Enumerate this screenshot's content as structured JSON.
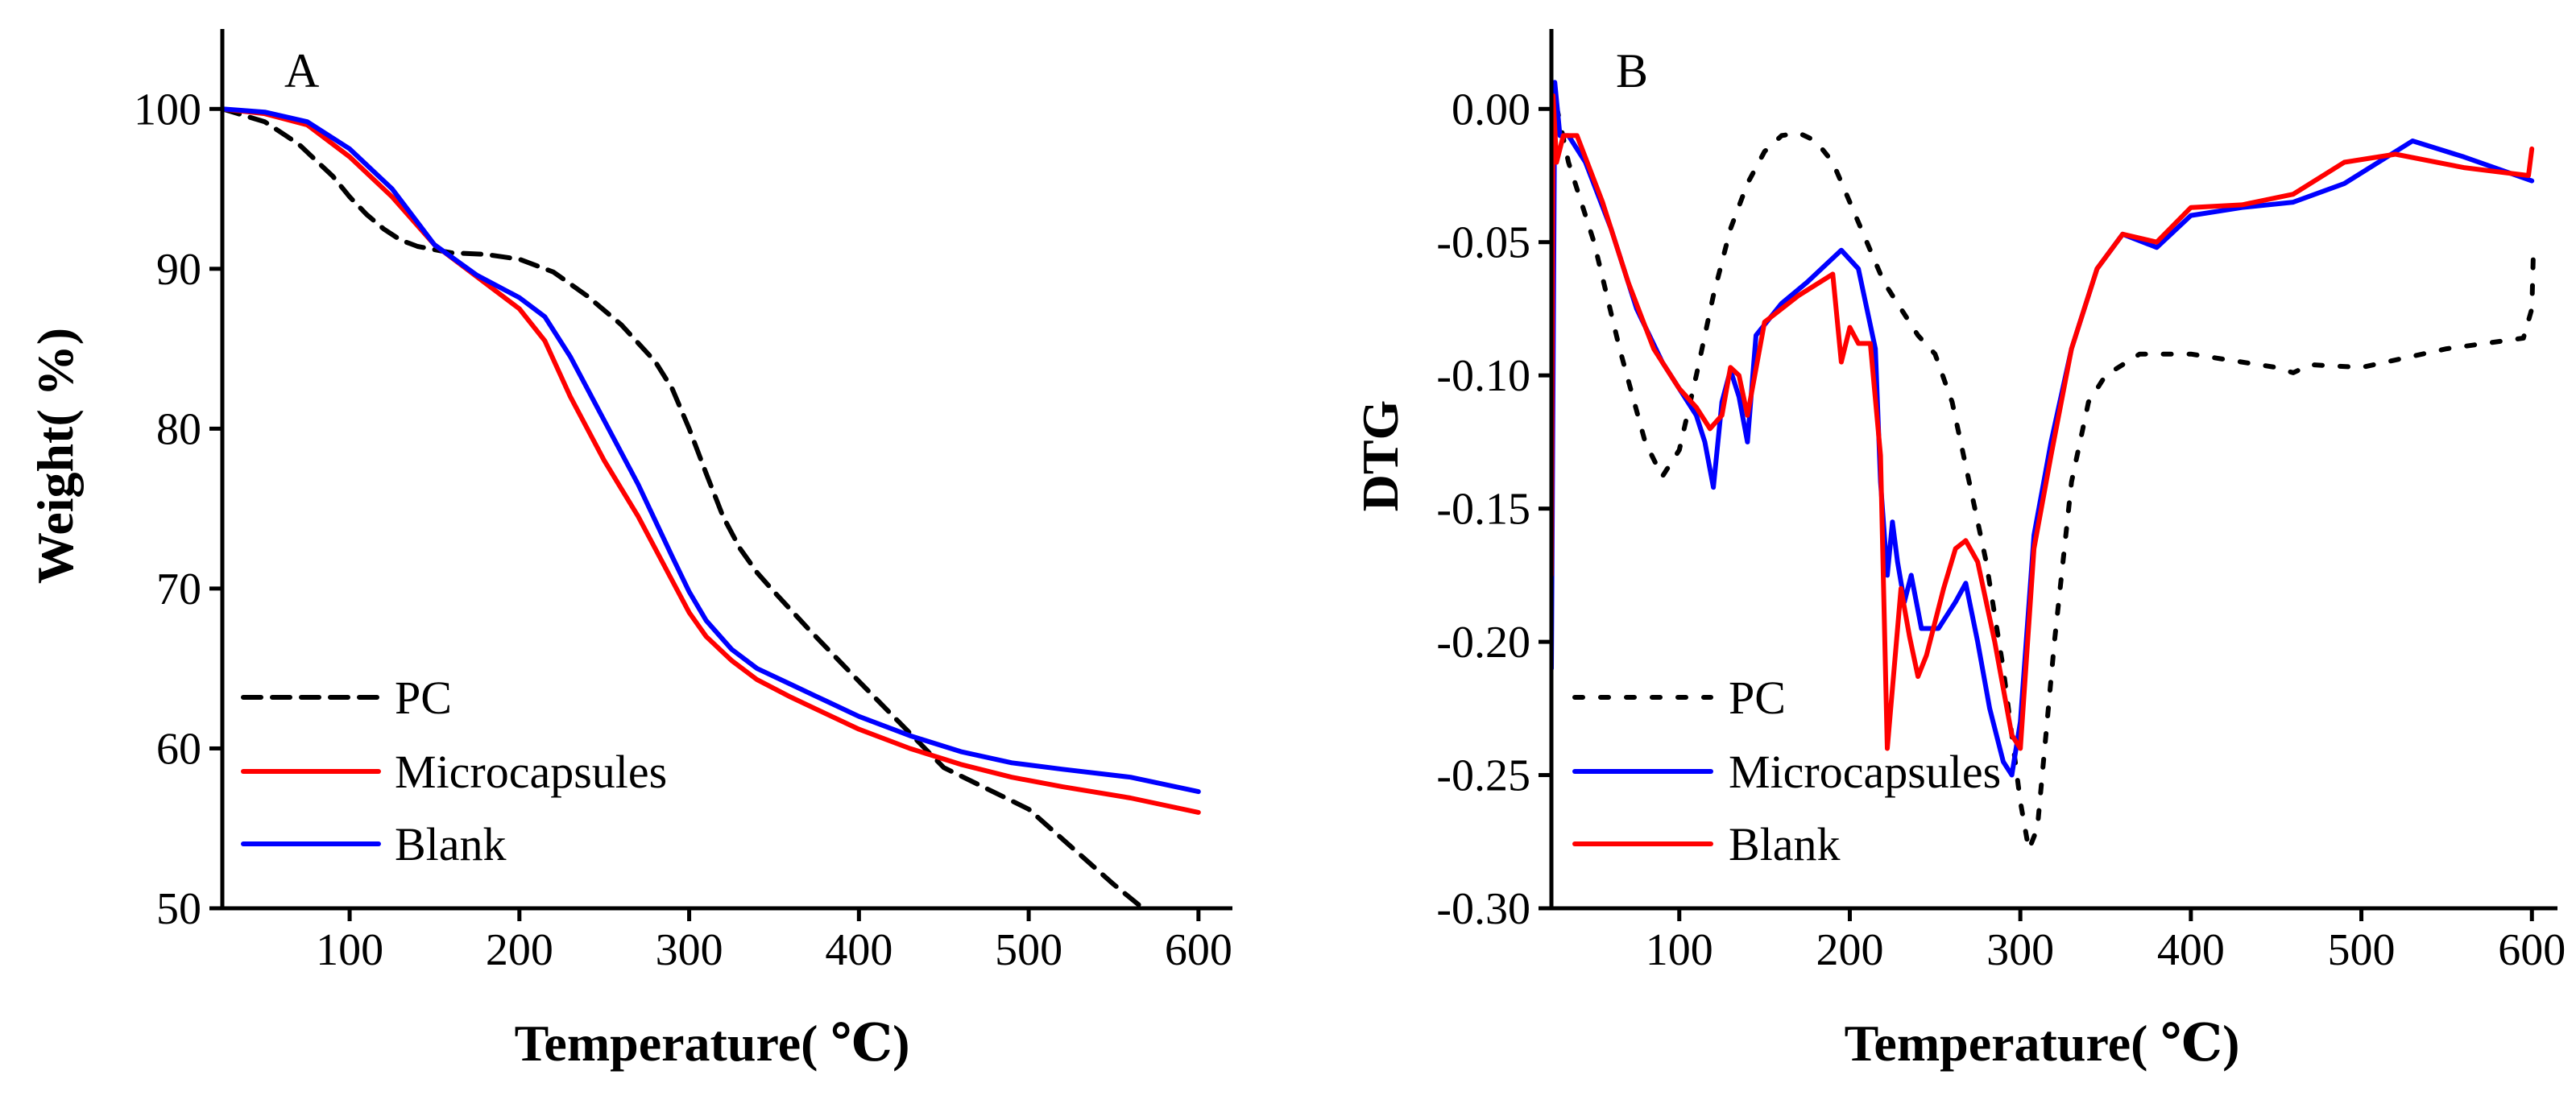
{
  "chart_data": [
    {
      "type": "line",
      "panel_label": "A",
      "xlabel": "Temperature( ℃)",
      "ylabel": "Weight( %)",
      "xlim": [
        25,
        620
      ],
      "ylim": [
        50,
        105
      ],
      "xticks": [
        100,
        200,
        300,
        400,
        500,
        600
      ],
      "yticks": [
        50,
        60,
        70,
        80,
        90,
        100
      ],
      "legend_position": "bottom-left",
      "series": [
        {
          "name": "PC",
          "color": "#000000",
          "dash": "dashed",
          "x": [
            25,
            50,
            70,
            90,
            100,
            110,
            120,
            130,
            140,
            150,
            160,
            180,
            200,
            220,
            240,
            260,
            280,
            290,
            300,
            310,
            320,
            330,
            340,
            350,
            370,
            400,
            450,
            500,
            550,
            565
          ],
          "y": [
            100,
            99.2,
            97.8,
            95.8,
            94.5,
            93.4,
            92.5,
            91.8,
            91.4,
            91.2,
            91.0,
            90.9,
            90.6,
            89.8,
            88.3,
            86.5,
            84.2,
            82.5,
            80.0,
            77.2,
            74.5,
            72.5,
            71.0,
            69.8,
            67.5,
            64.2,
            58.8,
            56.2,
            51.5,
            50.2
          ]
        },
        {
          "name": "Microcapsules",
          "color": "#ff0000",
          "dash": "solid",
          "x": [
            25,
            50,
            75,
            100,
            125,
            150,
            175,
            200,
            215,
            230,
            250,
            270,
            290,
            300,
            310,
            325,
            340,
            360,
            380,
            400,
            430,
            460,
            490,
            520,
            560,
            600
          ],
          "y": [
            100,
            99.7,
            99.0,
            97.0,
            94.5,
            91.5,
            89.5,
            87.5,
            85.5,
            82.0,
            78.0,
            74.5,
            70.5,
            68.5,
            67.0,
            65.5,
            64.3,
            63.2,
            62.2,
            61.2,
            60.0,
            59.0,
            58.2,
            57.6,
            56.9,
            56.0
          ]
        },
        {
          "name": "Blank",
          "color": "#0000ff",
          "dash": "solid",
          "x": [
            25,
            50,
            75,
            100,
            125,
            150,
            175,
            200,
            215,
            230,
            250,
            270,
            290,
            300,
            310,
            325,
            340,
            360,
            380,
            400,
            430,
            460,
            490,
            520,
            560,
            600
          ],
          "y": [
            100,
            99.8,
            99.2,
            97.5,
            95.0,
            91.5,
            89.6,
            88.2,
            87.0,
            84.5,
            80.5,
            76.5,
            72.0,
            69.8,
            68.0,
            66.2,
            65.0,
            64.0,
            63.0,
            62.0,
            60.8,
            59.8,
            59.1,
            58.7,
            58.2,
            57.3
          ]
        }
      ]
    },
    {
      "type": "line",
      "panel_label": "B",
      "xlabel": "Temperature( ℃)",
      "ylabel": "DTG",
      "xlim": [
        25,
        615
      ],
      "ylim": [
        -0.3,
        0.03
      ],
      "xticks": [
        100,
        200,
        300,
        400,
        500,
        600
      ],
      "yticks": [
        0.0,
        -0.05,
        -0.1,
        -0.15,
        -0.2,
        -0.25,
        -0.3
      ],
      "ytick_labels": [
        "0.00",
        "-0.05",
        "-0.10",
        "-0.15",
        "-0.20",
        "-0.25",
        "-0.30"
      ],
      "legend_position": "bottom-left",
      "series": [
        {
          "name": "PC",
          "color": "#000000",
          "dash": "dotted",
          "x": [
            25,
            35,
            50,
            65,
            80,
            90,
            100,
            110,
            120,
            130,
            140,
            150,
            160,
            170,
            180,
            190,
            200,
            210,
            220,
            230,
            240,
            250,
            260,
            270,
            280,
            290,
            300,
            305,
            310,
            320,
            330,
            340,
            350,
            370,
            400,
            450,
            460,
            470,
            500,
            550,
            595,
            600,
            601
          ],
          "y": [
            0.01,
            -0.02,
            -0.05,
            -0.09,
            -0.125,
            -0.138,
            -0.128,
            -0.1,
            -0.07,
            -0.045,
            -0.028,
            -0.016,
            -0.01,
            -0.009,
            -0.012,
            -0.02,
            -0.035,
            -0.05,
            -0.065,
            -0.075,
            -0.085,
            -0.092,
            -0.11,
            -0.14,
            -0.17,
            -0.21,
            -0.26,
            -0.278,
            -0.27,
            -0.2,
            -0.14,
            -0.11,
            -0.1,
            -0.092,
            -0.092,
            -0.097,
            -0.099,
            -0.096,
            -0.097,
            -0.09,
            -0.086,
            -0.075,
            -0.05
          ]
        },
        {
          "name": "Microcapsules",
          "color": "#0000ff",
          "dash": "solid",
          "x": [
            25,
            27,
            30,
            35,
            45,
            60,
            75,
            90,
            100,
            110,
            115,
            120,
            125,
            130,
            135,
            140,
            145,
            160,
            175,
            195,
            205,
            215,
            218,
            222,
            225,
            228,
            232,
            236,
            242,
            252,
            262,
            268,
            275,
            282,
            290,
            295,
            300,
            308,
            318,
            330,
            345,
            360,
            380,
            400,
            430,
            460,
            490,
            530,
            560,
            600
          ],
          "y": [
            -0.21,
            0.01,
            -0.01,
            -0.01,
            -0.02,
            -0.045,
            -0.075,
            -0.095,
            -0.105,
            -0.115,
            -0.125,
            -0.142,
            -0.11,
            -0.098,
            -0.108,
            -0.125,
            -0.085,
            -0.073,
            -0.065,
            -0.053,
            -0.06,
            -0.09,
            -0.14,
            -0.175,
            -0.155,
            -0.17,
            -0.185,
            -0.175,
            -0.195,
            -0.195,
            -0.185,
            -0.178,
            -0.2,
            -0.225,
            -0.245,
            -0.25,
            -0.23,
            -0.16,
            -0.125,
            -0.09,
            -0.06,
            -0.047,
            -0.052,
            -0.04,
            -0.037,
            -0.035,
            -0.028,
            -0.012,
            -0.018,
            -0.027
          ]
        },
        {
          "name": "Blank",
          "color": "#ff0000",
          "dash": "solid",
          "x": [
            25,
            26,
            28,
            32,
            40,
            55,
            70,
            85,
            100,
            110,
            118,
            125,
            130,
            135,
            140,
            150,
            170,
            190,
            195,
            200,
            205,
            212,
            218,
            222,
            226,
            230,
            235,
            240,
            245,
            255,
            262,
            268,
            275,
            285,
            295,
            300,
            308,
            318,
            330,
            345,
            360,
            380,
            400,
            430,
            460,
            490,
            520,
            560,
            598,
            600
          ],
          "y": [
            -0.175,
            0.005,
            -0.02,
            -0.01,
            -0.01,
            -0.035,
            -0.065,
            -0.09,
            -0.105,
            -0.112,
            -0.12,
            -0.115,
            -0.097,
            -0.1,
            -0.115,
            -0.08,
            -0.07,
            -0.062,
            -0.095,
            -0.082,
            -0.088,
            -0.088,
            -0.13,
            -0.24,
            -0.21,
            -0.18,
            -0.198,
            -0.213,
            -0.205,
            -0.18,
            -0.165,
            -0.162,
            -0.17,
            -0.2,
            -0.235,
            -0.24,
            -0.165,
            -0.13,
            -0.09,
            -0.06,
            -0.047,
            -0.05,
            -0.037,
            -0.036,
            -0.032,
            -0.02,
            -0.017,
            -0.022,
            -0.025,
            -0.015
          ]
        }
      ]
    }
  ]
}
